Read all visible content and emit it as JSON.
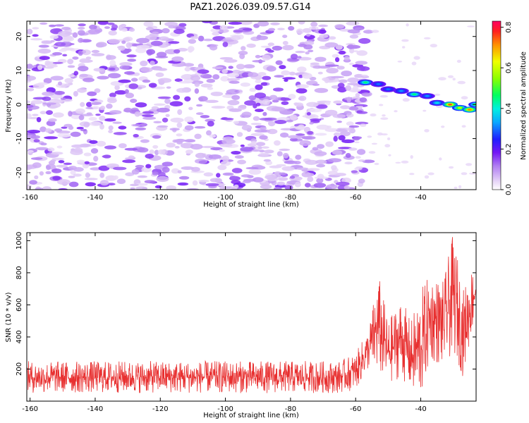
{
  "title": "PAZ1.2026.039.09.57.G14",
  "chart_data": [
    {
      "type": "heatmap",
      "title": "PAZ1.2026.039.09.57.G14",
      "xlabel": "Height of straight line (km)",
      "ylabel": "Frequency (Hz)",
      "xlim": [
        -161,
        -23
      ],
      "ylim": [
        -25,
        24.5
      ],
      "xticks": [
        -160,
        -140,
        -120,
        -100,
        -80,
        -60,
        -40
      ],
      "yticks": [
        -20,
        -10,
        0,
        10,
        20
      ],
      "colorbar": {
        "label": "Normalized spectral amplitude",
        "range": [
          0,
          0.83
        ],
        "ticks": [
          "0.0",
          "0.2",
          "0.4",
          "0.6",
          "0.8"
        ]
      },
      "ridge": [
        {
          "x": -57,
          "freq": 6.5,
          "amp": 0.45
        },
        {
          "x": -53,
          "freq": 6.0,
          "amp": 0.3
        },
        {
          "x": -50,
          "freq": 4.5,
          "amp": 0.3
        },
        {
          "x": -46,
          "freq": 4.0,
          "amp": 0.32
        },
        {
          "x": -42,
          "freq": 3.0,
          "amp": 0.45
        },
        {
          "x": -38,
          "freq": 2.5,
          "amp": 0.32
        },
        {
          "x": -35,
          "freq": 0.5,
          "amp": 0.38
        },
        {
          "x": -31,
          "freq": 0.0,
          "amp": 0.75
        },
        {
          "x": -28,
          "freq": -1.0,
          "amp": 0.6
        },
        {
          "x": -25,
          "freq": -1.5,
          "amp": 0.72
        },
        {
          "x": -23,
          "freq": 0.0,
          "amp": 0.5
        }
      ]
    },
    {
      "type": "line",
      "xlabel": "Height of straight line (km)",
      "ylabel": "SNR (10 * v/v)",
      "xlim": [
        -161,
        -23
      ],
      "ylim": [
        0,
        1050
      ],
      "xticks": [
        -160,
        -140,
        -120,
        -100,
        -80,
        -60,
        -40
      ],
      "yticks": [
        200,
        400,
        600,
        800,
        1000
      ],
      "series": [
        {
          "name": "SNR",
          "color": "#e83030",
          "envelope": [
            {
              "x": -161,
              "low": 50,
              "high": 250
            },
            {
              "x": -65,
              "low": 50,
              "high": 250
            },
            {
              "x": -60,
              "low": 70,
              "high": 300
            },
            {
              "x": -56,
              "low": 200,
              "high": 450
            },
            {
              "x": -53,
              "low": 150,
              "high": 800
            },
            {
              "x": -50,
              "low": 100,
              "high": 500
            },
            {
              "x": -46,
              "low": 150,
              "high": 650
            },
            {
              "x": -43,
              "low": 50,
              "high": 500
            },
            {
              "x": -40,
              "low": 0,
              "high": 700
            },
            {
              "x": -37,
              "low": 250,
              "high": 800
            },
            {
              "x": -33,
              "low": 200,
              "high": 750
            },
            {
              "x": -30,
              "low": 300,
              "high": 1050
            },
            {
              "x": -27,
              "low": 150,
              "high": 700
            },
            {
              "x": -24,
              "low": 450,
              "high": 850
            },
            {
              "x": -23,
              "low": 500,
              "high": 900
            }
          ]
        }
      ]
    }
  ]
}
